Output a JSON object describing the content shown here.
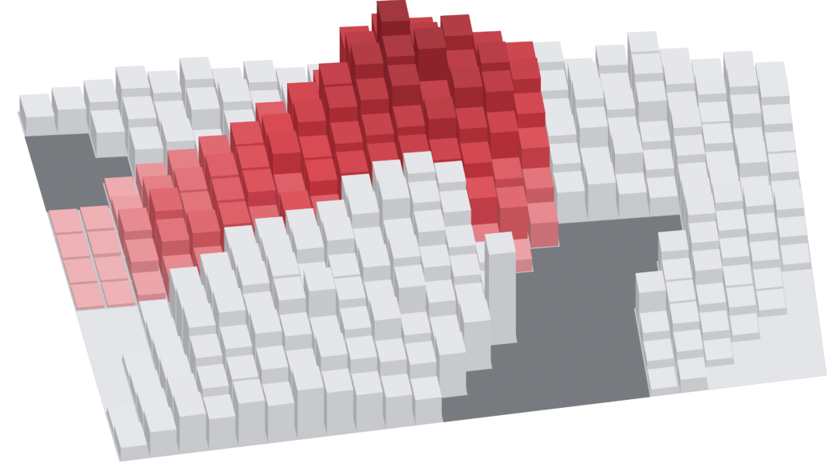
{
  "chart_data": {
    "type": "bar3d",
    "tick_labels": false,
    "ylim": [
      0,
      100
    ],
    "series": [
      {
        "color": "#e2e4e8",
        "values": [
          [
            15,
            20,
            25,
            35,
            30,
            40,
            30,
            35,
            28,
            30,
            null,
            null,
            null,
            null,
            null,
            30,
            40,
            25,
            35,
            45,
            30,
            20,
            25,
            15
          ],
          [
            null,
            null,
            20,
            30,
            25,
            35,
            40,
            30,
            35,
            null,
            null,
            null,
            null,
            null,
            null,
            null,
            35,
            40,
            30,
            45,
            35,
            25,
            30,
            20
          ],
          [
            null,
            null,
            null,
            25,
            30,
            20,
            35,
            null,
            null,
            null,
            null,
            null,
            null,
            null,
            null,
            null,
            30,
            45,
            35,
            40,
            30,
            20,
            25,
            15
          ],
          [
            null,
            null,
            null,
            null,
            null,
            null,
            null,
            null,
            null,
            null,
            null,
            null,
            null,
            null,
            null,
            null,
            35,
            40,
            30,
            25,
            35,
            20,
            15,
            10
          ],
          [
            null,
            null,
            null,
            null,
            null,
            null,
            null,
            null,
            null,
            null,
            null,
            null,
            null,
            null,
            null,
            null,
            30,
            25,
            35,
            20,
            30,
            15,
            20,
            10
          ],
          [
            null,
            null,
            null,
            null,
            null,
            null,
            null,
            null,
            null,
            null,
            null,
            null,
            null,
            null,
            null,
            null,
            25,
            30,
            20,
            15,
            25,
            20,
            10,
            5
          ],
          [
            null,
            null,
            null,
            null,
            null,
            null,
            null,
            null,
            null,
            55,
            65,
            70,
            60,
            null,
            null,
            null,
            null,
            null,
            null,
            null,
            30,
            25,
            20,
            15
          ],
          [
            null,
            null,
            null,
            null,
            null,
            40,
            45,
            50,
            55,
            60,
            70,
            65,
            55,
            null,
            null,
            null,
            null,
            null,
            null,
            null,
            35,
            20,
            15,
            10
          ],
          [
            0,
            0,
            5,
            30,
            40,
            45,
            50,
            55,
            60,
            50,
            55,
            60,
            45,
            30,
            null,
            null,
            null,
            null,
            null,
            25,
            30,
            15,
            10,
            5
          ],
          [
            0,
            0,
            10,
            35,
            45,
            50,
            55,
            45,
            50,
            55,
            60,
            50,
            40,
            25,
            null,
            null,
            null,
            null,
            null,
            20,
            25,
            10,
            5,
            0
          ],
          [
            0,
            5,
            15,
            40,
            50,
            45,
            55,
            60,
            50,
            45,
            55,
            40,
            35,
            75,
            null,
            null,
            null,
            null,
            30,
            20,
            15,
            10,
            5,
            0
          ],
          [
            0,
            10,
            20,
            35,
            40,
            50,
            45,
            40,
            45,
            50,
            35,
            30,
            40,
            null,
            null,
            null,
            null,
            null,
            15,
            20,
            10,
            5,
            0,
            0
          ],
          [
            5,
            15,
            25,
            30,
            35,
            40,
            35,
            45,
            40,
            35,
            30,
            35,
            null,
            null,
            null,
            null,
            null,
            null,
            10,
            15,
            5,
            0,
            0,
            0
          ],
          [
            10,
            20,
            30,
            25,
            35,
            30,
            40,
            35,
            30,
            25,
            20,
            null,
            null,
            null,
            null,
            null,
            null,
            null,
            5,
            10,
            0,
            0,
            0,
            0
          ]
        ]
      },
      {
        "color": "#d63a44",
        "values": [
          [
            null,
            null,
            null,
            null,
            null,
            null,
            null,
            null,
            null,
            null,
            60,
            70,
            65,
            55,
            50,
            null,
            null,
            null,
            null,
            null,
            null,
            null,
            null,
            null
          ],
          [
            null,
            null,
            null,
            null,
            null,
            null,
            null,
            null,
            null,
            45,
            75,
            100,
            80,
            85,
            70,
            60,
            null,
            null,
            null,
            null,
            null,
            null,
            null,
            null
          ],
          [
            null,
            null,
            null,
            null,
            null,
            null,
            null,
            40,
            55,
            70,
            85,
            90,
            95,
            75,
            80,
            65,
            null,
            null,
            null,
            null,
            null,
            null,
            null,
            null
          ],
          [
            null,
            null,
            5,
            15,
            25,
            35,
            45,
            50,
            60,
            70,
            75,
            85,
            70,
            80,
            75,
            55,
            null,
            null,
            null,
            null,
            null,
            null,
            null,
            null
          ],
          [
            2,
            3,
            10,
            25,
            30,
            40,
            45,
            55,
            50,
            60,
            65,
            70,
            75,
            65,
            60,
            45,
            null,
            null,
            null,
            null,
            null,
            null,
            null,
            null
          ],
          [
            2,
            3,
            20,
            35,
            30,
            40,
            45,
            40,
            50,
            55,
            60,
            65,
            60,
            55,
            40,
            30,
            null,
            null,
            null,
            null,
            null,
            null,
            null,
            null
          ],
          [
            2,
            2,
            15,
            30,
            35,
            40,
            35,
            45,
            40,
            null,
            null,
            null,
            null,
            45,
            35,
            20,
            null,
            null,
            null,
            null,
            null,
            null,
            null,
            null
          ],
          [
            2,
            2,
            8,
            20,
            25,
            null,
            null,
            null,
            null,
            null,
            null,
            null,
            null,
            25,
            10,
            null,
            null,
            null,
            null,
            null,
            null,
            null,
            null,
            null
          ],
          [
            null,
            null,
            null,
            null,
            null,
            null,
            null,
            null,
            null,
            null,
            null,
            null,
            null,
            null,
            null,
            null,
            null,
            null,
            null,
            null,
            null,
            null,
            null,
            null
          ],
          [
            null,
            null,
            null,
            null,
            null,
            null,
            null,
            null,
            null,
            null,
            null,
            null,
            null,
            null,
            null,
            null,
            null,
            null,
            null,
            null,
            null,
            null,
            null,
            null
          ],
          [
            null,
            null,
            null,
            null,
            null,
            null,
            null,
            null,
            null,
            null,
            null,
            null,
            null,
            null,
            null,
            null,
            null,
            null,
            null,
            null,
            null,
            null,
            null,
            null
          ],
          [
            null,
            null,
            null,
            null,
            null,
            null,
            null,
            null,
            null,
            null,
            null,
            null,
            null,
            null,
            null,
            null,
            null,
            null,
            null,
            null,
            null,
            null,
            null,
            null
          ],
          [
            null,
            null,
            null,
            null,
            null,
            null,
            null,
            null,
            null,
            null,
            null,
            null,
            null,
            null,
            null,
            null,
            null,
            null,
            null,
            null,
            null,
            null,
            null,
            null
          ],
          [
            null,
            null,
            null,
            null,
            null,
            null,
            null,
            null,
            null,
            null,
            null,
            null,
            null,
            null,
            null,
            null,
            null,
            null,
            null,
            null,
            null,
            null,
            null,
            null
          ]
        ]
      },
      {
        "color": "#6e7176",
        "values": [
          [
            null,
            null,
            null,
            null,
            null,
            null,
            null,
            null,
            null,
            null,
            null,
            null,
            null,
            null,
            null,
            null,
            null,
            null,
            null,
            null,
            null,
            null,
            null,
            null
          ],
          [
            0,
            0,
            null,
            null,
            null,
            null,
            null,
            null,
            null,
            null,
            null,
            null,
            null,
            null,
            null,
            null,
            null,
            null,
            null,
            null,
            null,
            null,
            null,
            null
          ],
          [
            0,
            0,
            0,
            null,
            null,
            null,
            null,
            null,
            null,
            null,
            null,
            null,
            null,
            null,
            null,
            null,
            null,
            null,
            null,
            null,
            null,
            null,
            null,
            null
          ],
          [
            0,
            0,
            null,
            null,
            null,
            null,
            null,
            null,
            null,
            null,
            null,
            null,
            null,
            null,
            null,
            null,
            null,
            null,
            null,
            null,
            null,
            null,
            null,
            null
          ],
          [
            null,
            null,
            null,
            null,
            null,
            null,
            null,
            null,
            null,
            null,
            null,
            null,
            null,
            null,
            null,
            null,
            null,
            null,
            null,
            null,
            null,
            null,
            null,
            null
          ],
          [
            null,
            null,
            null,
            null,
            null,
            null,
            null,
            null,
            null,
            null,
            null,
            null,
            null,
            null,
            null,
            null,
            null,
            null,
            null,
            null,
            null,
            null,
            null,
            null
          ],
          [
            null,
            null,
            null,
            null,
            null,
            null,
            null,
            null,
            null,
            null,
            null,
            null,
            null,
            null,
            null,
            null,
            0,
            0,
            0,
            0,
            null,
            null,
            null,
            null
          ],
          [
            null,
            null,
            null,
            null,
            null,
            null,
            null,
            null,
            null,
            null,
            null,
            null,
            null,
            null,
            null,
            0,
            0,
            0,
            0,
            0,
            null,
            null,
            null,
            null
          ],
          [
            null,
            null,
            null,
            null,
            null,
            null,
            null,
            null,
            null,
            null,
            null,
            null,
            null,
            null,
            0,
            0,
            0,
            0,
            0,
            null,
            null,
            null,
            null,
            null
          ],
          [
            null,
            null,
            null,
            null,
            null,
            null,
            null,
            null,
            null,
            null,
            null,
            null,
            null,
            null,
            0,
            0,
            0,
            0,
            0,
            null,
            null,
            null,
            null,
            null
          ],
          [
            null,
            null,
            null,
            null,
            null,
            null,
            null,
            null,
            null,
            null,
            null,
            null,
            null,
            null,
            0,
            0,
            0,
            0,
            null,
            null,
            null,
            null,
            null,
            null
          ],
          [
            null,
            null,
            null,
            null,
            null,
            null,
            null,
            null,
            null,
            null,
            null,
            null,
            null,
            0,
            0,
            0,
            0,
            0,
            null,
            null,
            null,
            null,
            null,
            null
          ],
          [
            null,
            null,
            null,
            null,
            null,
            null,
            null,
            null,
            null,
            null,
            null,
            null,
            0,
            0,
            0,
            0,
            0,
            0,
            null,
            null,
            null,
            null,
            null,
            null
          ],
          [
            null,
            null,
            null,
            null,
            null,
            null,
            null,
            null,
            null,
            null,
            null,
            0,
            0,
            0,
            0,
            0,
            0,
            0,
            null,
            null,
            null,
            null,
            null,
            null
          ]
        ]
      }
    ]
  }
}
